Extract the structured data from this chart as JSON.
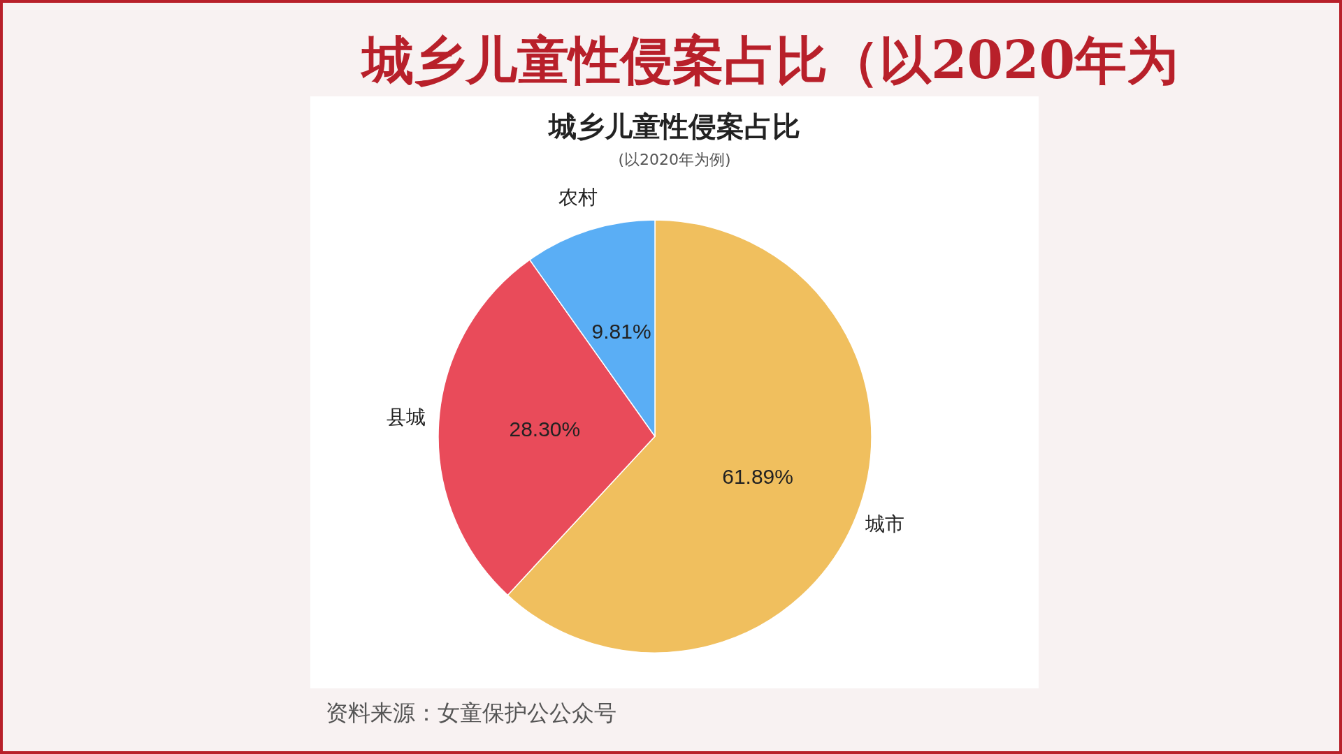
{
  "chart_data": {
    "type": "pie",
    "title": "城乡儿童性侵案占比",
    "subtitle": "(以2020年为例)",
    "categories": [
      "城市",
      "县城",
      "农村"
    ],
    "values": [
      61.89,
      28.3,
      9.81
    ],
    "colors": [
      "#f0bf5e",
      "#e94b5a",
      "#5aaef5"
    ],
    "value_labels": [
      "61.89%",
      "28.30%",
      "9.81%"
    ],
    "annotations": [
      "城乡儿童性侵案占比（以2020年为",
      "资料来源：女童保护公公众号"
    ]
  }
}
